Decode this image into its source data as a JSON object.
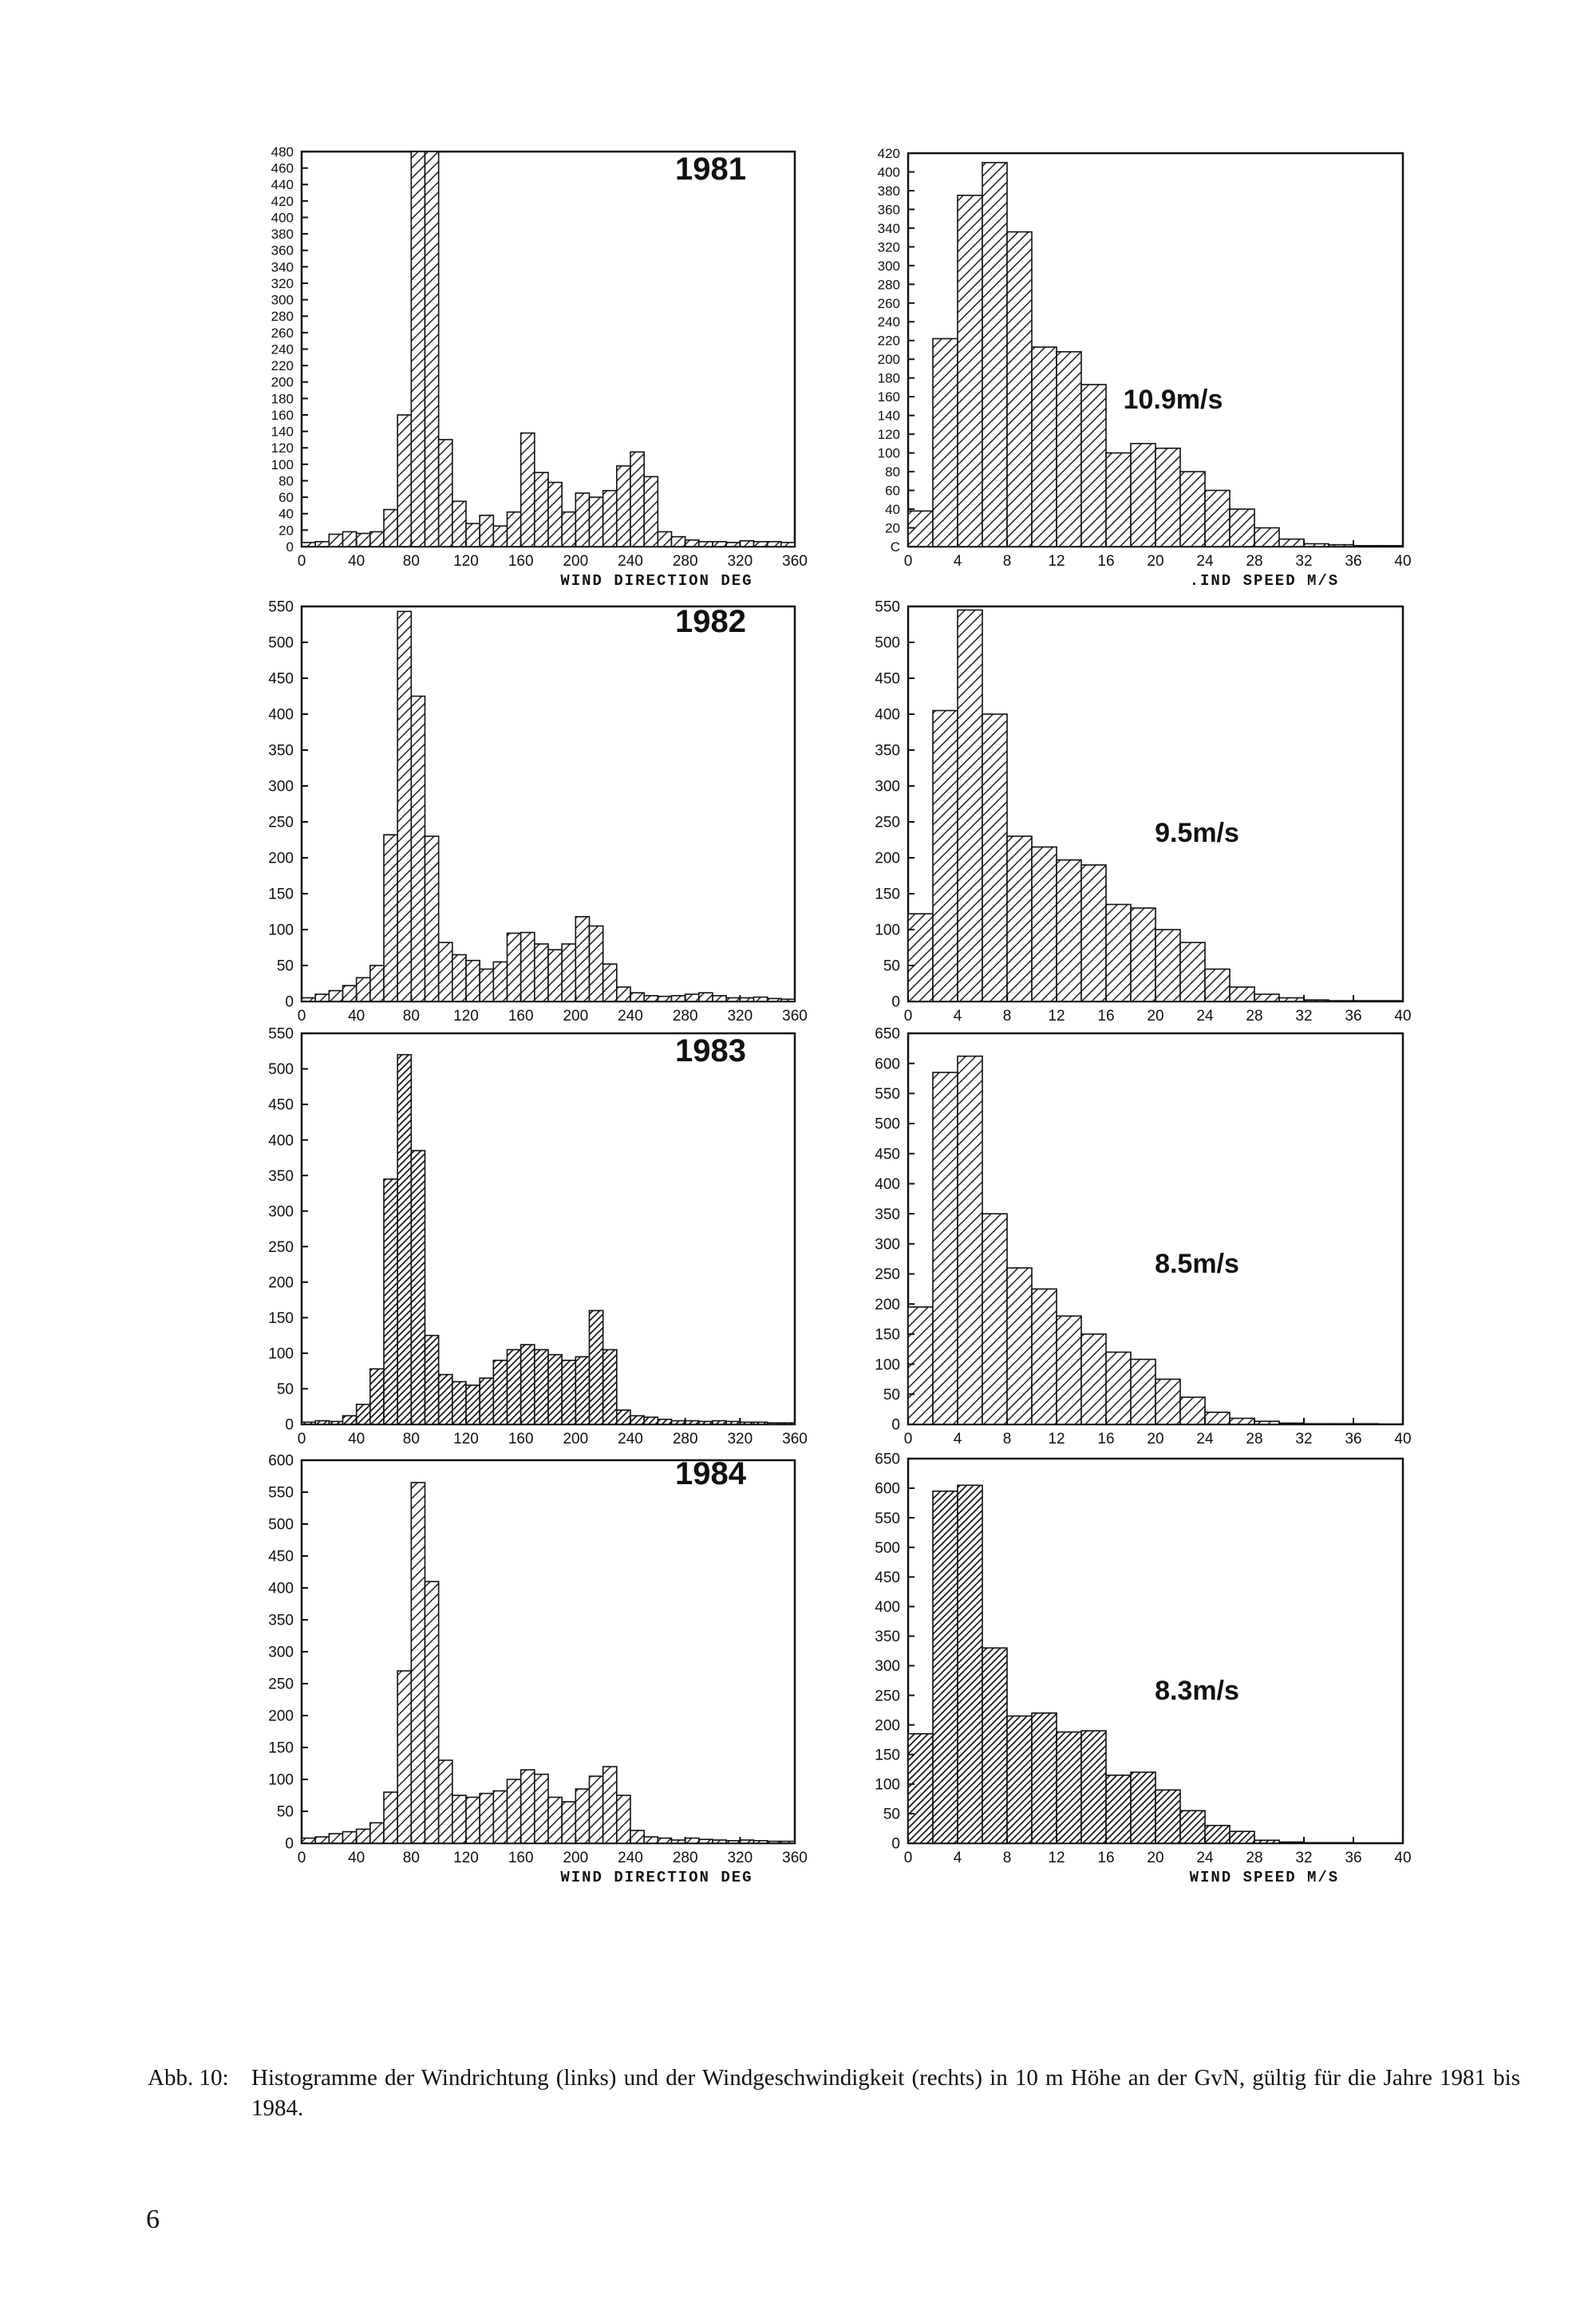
{
  "caption": {
    "label": "Abb. 10:",
    "text": "Histogramme der Windrichtung (links) und der Windgeschwindigkeit (rechts) in 10 m Höhe an der GvN, gültig für die Jahre 1981 bis 1984."
  },
  "page_number": "6",
  "chart_data": [
    {
      "id": "dir-1981",
      "type": "bar",
      "year_label": "1981",
      "xlabel": "WIND DIRECTION DEG",
      "ylim": [
        0,
        480
      ],
      "yticks": [
        0,
        20,
        40,
        60,
        80,
        100,
        120,
        140,
        160,
        180,
        200,
        220,
        240,
        260,
        280,
        300,
        320,
        340,
        360,
        380,
        400,
        420,
        440,
        460,
        480
      ],
      "xlim": [
        0,
        360
      ],
      "xticks": [
        0,
        40,
        80,
        120,
        160,
        200,
        240,
        280,
        320,
        360
      ],
      "bin_width": 10,
      "values": [
        5,
        6,
        15,
        18,
        16,
        18,
        45,
        160,
        480,
        480,
        130,
        55,
        28,
        38,
        25,
        42,
        138,
        90,
        78,
        42,
        65,
        60,
        68,
        98,
        115,
        85,
        18,
        12,
        8,
        6,
        6,
        5,
        7,
        6,
        6,
        5
      ]
    },
    {
      "id": "speed-1981",
      "type": "bar",
      "speed_label": "10.9m/s",
      "xlabel": ".IND SPEED M/S",
      "ylim": [
        0,
        420
      ],
      "yticks": [
        0,
        20,
        40,
        60,
        80,
        100,
        120,
        140,
        160,
        180,
        200,
        220,
        240,
        260,
        280,
        300,
        320,
        340,
        360,
        380,
        400,
        420
      ],
      "ytick_labels": [
        "C",
        "20",
        "40",
        "60",
        "80",
        "100",
        "120",
        "140",
        "160",
        "180",
        "200",
        "220",
        "240",
        "260",
        "280",
        "300",
        "320",
        "340",
        "360",
        "380",
        "400",
        "420"
      ],
      "xlim": [
        0,
        40
      ],
      "xticks": [
        0,
        4,
        8,
        12,
        16,
        20,
        24,
        28,
        32,
        36,
        40
      ],
      "bin_width": 2,
      "values": [
        38,
        222,
        375,
        410,
        336,
        213,
        208,
        173,
        100,
        110,
        105,
        80,
        60,
        40,
        20,
        8,
        3,
        2,
        1,
        1
      ]
    },
    {
      "id": "dir-1982",
      "type": "bar",
      "year_label": "1982",
      "xlabel": "",
      "ylim": [
        0,
        550
      ],
      "yticks": [
        0,
        50,
        100,
        150,
        200,
        250,
        300,
        350,
        400,
        450,
        500,
        550
      ],
      "xlim": [
        0,
        360
      ],
      "xticks": [
        0,
        40,
        80,
        120,
        160,
        200,
        240,
        280,
        320,
        360
      ],
      "xtick_labels": [
        "0",
        "40",
        "80",
        "120",
        "160",
        "200",
        "240",
        "280",
        "320",
        "360"
      ],
      "bin_width": 10,
      "values": [
        5,
        10,
        15,
        22,
        33,
        50,
        232,
        543,
        425,
        230,
        82,
        65,
        57,
        45,
        55,
        95,
        96,
        80,
        72,
        80,
        118,
        105,
        52,
        20,
        12,
        8,
        7,
        8,
        10,
        12,
        8,
        5,
        5,
        6,
        4,
        3
      ]
    },
    {
      "id": "speed-1982",
      "type": "bar",
      "speed_label": "9.5m/s",
      "xlabel": "",
      "ylim": [
        0,
        550
      ],
      "yticks": [
        0,
        50,
        100,
        150,
        200,
        250,
        300,
        350,
        400,
        450,
        500,
        550
      ],
      "xlim": [
        0,
        40
      ],
      "xticks": [
        0,
        4,
        8,
        12,
        16,
        20,
        24,
        28,
        32,
        36,
        40
      ],
      "bin_width": 2,
      "values": [
        122,
        405,
        545,
        400,
        230,
        215,
        197,
        190,
        135,
        130,
        100,
        82,
        45,
        20,
        10,
        5,
        2,
        1,
        1,
        1
      ]
    },
    {
      "id": "dir-1983",
      "type": "bar",
      "year_label": "1983",
      "xlabel": "",
      "ylim": [
        0,
        550
      ],
      "yticks": [
        0,
        50,
        100,
        150,
        200,
        250,
        300,
        350,
        400,
        450,
        500,
        550
      ],
      "xlim": [
        0,
        360
      ],
      "xticks": [
        0,
        40,
        80,
        120,
        160,
        200,
        240,
        280,
        320,
        360
      ],
      "bin_width": 10,
      "values": [
        3,
        5,
        4,
        12,
        28,
        78,
        345,
        520,
        385,
        125,
        70,
        60,
        55,
        65,
        90,
        105,
        112,
        105,
        98,
        90,
        95,
        160,
        105,
        20,
        12,
        10,
        7,
        5,
        5,
        4,
        5,
        4,
        3,
        3,
        2,
        2
      ]
    },
    {
      "id": "speed-1983",
      "type": "bar",
      "speed_label": "8.5m/s",
      "xlabel": "",
      "ylim": [
        0,
        650
      ],
      "yticks": [
        0,
        50,
        100,
        150,
        200,
        250,
        300,
        350,
        400,
        450,
        500,
        550,
        600,
        650
      ],
      "xlim": [
        0,
        40
      ],
      "xticks": [
        0,
        4,
        8,
        12,
        16,
        20,
        24,
        28,
        32,
        36,
        40
      ],
      "bin_width": 2,
      "values": [
        195,
        585,
        612,
        350,
        260,
        225,
        180,
        150,
        120,
        108,
        75,
        45,
        20,
        10,
        5,
        2,
        1,
        1,
        1,
        0
      ]
    },
    {
      "id": "dir-1984",
      "type": "bar",
      "year_label": "1984",
      "xlabel": "WIND DIRECTION DEG",
      "ylim": [
        0,
        600
      ],
      "yticks": [
        0,
        50,
        100,
        150,
        200,
        250,
        300,
        350,
        400,
        450,
        500,
        550,
        600
      ],
      "ytick_labels": [
        "0",
        "50",
        "100",
        "150",
        "200",
        "250",
        "300",
        "350",
        "400",
        "450",
        "500",
        "550",
        "600"
      ],
      "xlim": [
        0,
        360
      ],
      "xticks": [
        0,
        40,
        80,
        120,
        160,
        200,
        240,
        280,
        320,
        360
      ],
      "bin_width": 10,
      "values": [
        8,
        10,
        15,
        18,
        22,
        32,
        80,
        270,
        565,
        410,
        130,
        75,
        72,
        78,
        82,
        100,
        115,
        108,
        72,
        65,
        85,
        105,
        120,
        75,
        20,
        10,
        8,
        5,
        8,
        6,
        5,
        4,
        5,
        4,
        3,
        3
      ]
    },
    {
      "id": "speed-1984",
      "type": "bar",
      "speed_label": "8.3m/s",
      "xlabel": "WIND SPEED M/S",
      "ylim": [
        0,
        650
      ],
      "yticks": [
        0,
        50,
        100,
        150,
        200,
        250,
        300,
        350,
        400,
        450,
        500,
        550,
        600,
        650
      ],
      "xlim": [
        0,
        40
      ],
      "xticks": [
        0,
        4,
        8,
        12,
        16,
        20,
        24,
        28,
        32,
        36,
        40
      ],
      "bin_width": 2,
      "values": [
        185,
        595,
        605,
        330,
        215,
        220,
        188,
        190,
        115,
        120,
        90,
        55,
        30,
        20,
        5,
        2,
        1,
        1,
        0,
        0
      ]
    }
  ]
}
